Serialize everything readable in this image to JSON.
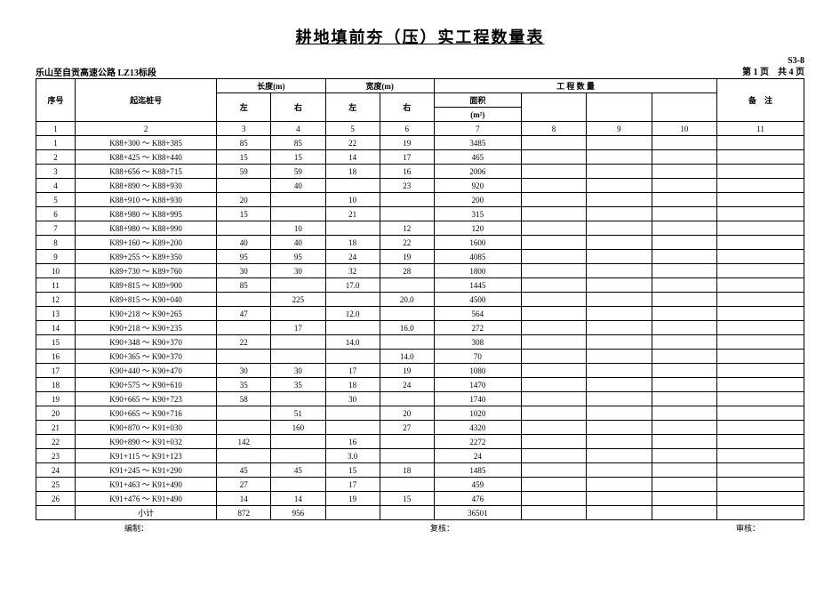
{
  "doc": {
    "title": "耕地填前夯（压）实工程数量表",
    "code": "S3-8",
    "project": "乐山至自贡高速公路  LZ13标段",
    "page_label": "第 1 页　共 4 页"
  },
  "headers": {
    "idx": "序号",
    "stake": "起迄桩号",
    "len_group": "长度(m)",
    "wid_group": "宽度(m)",
    "qty_group": "工 程 数 量",
    "left": "左",
    "right": "右",
    "area_label": "面积",
    "area_unit": "(m²)",
    "note": "备　注",
    "col_nums": [
      "1",
      "2",
      "3",
      "4",
      "5",
      "6",
      "7",
      "8",
      "9",
      "10",
      "11"
    ]
  },
  "rows": [
    {
      "i": "1",
      "stake": "K88+300 ～ K88+385",
      "lL": "85",
      "lR": "85",
      "wL": "22",
      "wR": "19",
      "area": "3485"
    },
    {
      "i": "2",
      "stake": "K88+425 ～ K88+440",
      "lL": "15",
      "lR": "15",
      "wL": "14",
      "wR": "17",
      "area": "465"
    },
    {
      "i": "3",
      "stake": "K88+656 ～ K88+715",
      "lL": "59",
      "lR": "59",
      "wL": "18",
      "wR": "16",
      "area": "2006"
    },
    {
      "i": "4",
      "stake": "K88+890 ～ K88+930",
      "lL": "",
      "lR": "40",
      "wL": "",
      "wR": "23",
      "area": "920"
    },
    {
      "i": "5",
      "stake": "K88+910 ～ K88+930",
      "lL": "20",
      "lR": "",
      "wL": "10",
      "wR": "",
      "area": "200"
    },
    {
      "i": "6",
      "stake": "K88+980 ～ K88+995",
      "lL": "15",
      "lR": "",
      "wL": "21",
      "wR": "",
      "area": "315"
    },
    {
      "i": "7",
      "stake": "K88+980 ～ K88+990",
      "lL": "",
      "lR": "10",
      "wL": "",
      "wR": "12",
      "area": "120"
    },
    {
      "i": "8",
      "stake": "K89+160 ～ K89+200",
      "lL": "40",
      "lR": "40",
      "wL": "18",
      "wR": "22",
      "area": "1600"
    },
    {
      "i": "9",
      "stake": "K89+255 ～ K89+350",
      "lL": "95",
      "lR": "95",
      "wL": "24",
      "wR": "19",
      "area": "4085"
    },
    {
      "i": "10",
      "stake": "K89+730 ～ K89+760",
      "lL": "30",
      "lR": "30",
      "wL": "32",
      "wR": "28",
      "area": "1800"
    },
    {
      "i": "11",
      "stake": "K89+815 ～ K89+900",
      "lL": "85",
      "lR": "",
      "wL": "17.0",
      "wR": "",
      "area": "1445"
    },
    {
      "i": "12",
      "stake": "K89+815 ～ K90+040",
      "lL": "",
      "lR": "225",
      "wL": "",
      "wR": "20.0",
      "area": "4500"
    },
    {
      "i": "13",
      "stake": "K90+218 ～ K90+265",
      "lL": "47",
      "lR": "",
      "wL": "12.0",
      "wR": "",
      "area": "564"
    },
    {
      "i": "14",
      "stake": "K90+218 ～ K90+235",
      "lL": "",
      "lR": "17",
      "wL": "",
      "wR": "16.0",
      "area": "272"
    },
    {
      "i": "15",
      "stake": "K90+348 ～ K90+370",
      "lL": "22",
      "lR": "",
      "wL": "14.0",
      "wR": "",
      "area": "308"
    },
    {
      "i": "16",
      "stake": "K90+365 ～ K90+370",
      "lL": "",
      "lR": "",
      "wL": "",
      "wR": "14.0",
      "area": "70"
    },
    {
      "i": "17",
      "stake": "K90+440 ～ K90+470",
      "lL": "30",
      "lR": "30",
      "wL": "17",
      "wR": "19",
      "area": "1080"
    },
    {
      "i": "18",
      "stake": "K90+575 ～ K90+610",
      "lL": "35",
      "lR": "35",
      "wL": "18",
      "wR": "24",
      "area": "1470"
    },
    {
      "i": "19",
      "stake": "K90+665 ～ K90+723",
      "lL": "58",
      "lR": "",
      "wL": "30",
      "wR": "",
      "area": "1740"
    },
    {
      "i": "20",
      "stake": "K90+665 ～ K90+716",
      "lL": "",
      "lR": "51",
      "wL": "",
      "wR": "20",
      "area": "1020"
    },
    {
      "i": "21",
      "stake": "K90+870 ～ K91+030",
      "lL": "",
      "lR": "160",
      "wL": "",
      "wR": "27",
      "area": "4320"
    },
    {
      "i": "22",
      "stake": "K90+890 ～ K91+032",
      "lL": "142",
      "lR": "",
      "wL": "16",
      "wR": "",
      "area": "2272"
    },
    {
      "i": "23",
      "stake": "K91+115 ～ K91+123",
      "lL": "",
      "lR": "",
      "wL": "3.0",
      "wR": "",
      "area": "24"
    },
    {
      "i": "24",
      "stake": "K91+245 ～ K91+290",
      "lL": "45",
      "lR": "45",
      "wL": "15",
      "wR": "18",
      "area": "1485"
    },
    {
      "i": "25",
      "stake": "K91+463 ～ K91+490",
      "lL": "27",
      "lR": "",
      "wL": "17",
      "wR": "",
      "area": "459"
    },
    {
      "i": "26",
      "stake": "K91+476 ～ K91+490",
      "lL": "14",
      "lR": "14",
      "wL": "19",
      "wR": "15",
      "area": "476"
    }
  ],
  "subtotal": {
    "label": "小计",
    "lL": "872",
    "lR": "956",
    "wL": "",
    "wR": "",
    "area": "36501"
  },
  "footer": {
    "made": "编制：",
    "check": "复核：",
    "lead": "审核："
  }
}
